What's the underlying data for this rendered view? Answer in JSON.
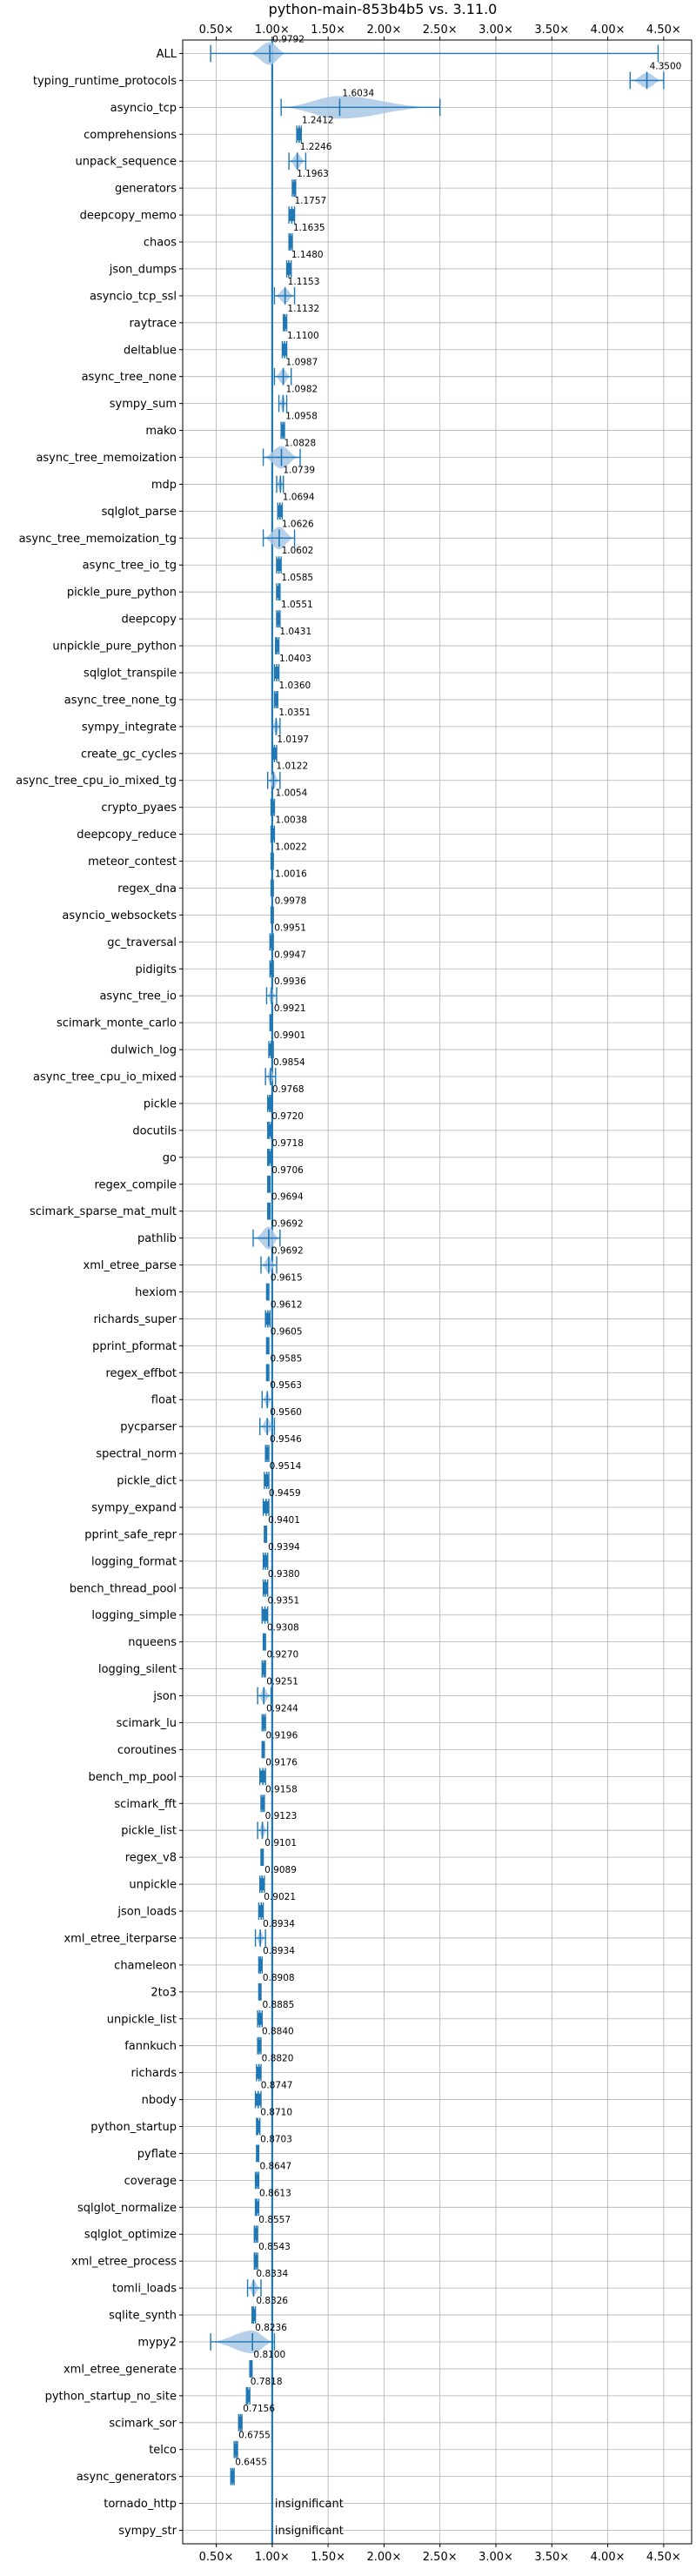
{
  "chart_data": {
    "type": "violin",
    "title": "python-main-853b4b5 vs. 3.11.0",
    "xlabel": "",
    "ylabel": "",
    "xlim": [
      0.2,
      4.75
    ],
    "x_ticks": [
      0.5,
      1.0,
      1.5,
      2.0,
      2.5,
      3.0,
      3.5,
      4.0,
      4.5
    ],
    "x_tick_labels": [
      "0.50×",
      "1.00×",
      "1.50×",
      "2.00×",
      "2.50×",
      "3.00×",
      "3.50×",
      "4.00×",
      "4.50×"
    ],
    "reference_line": 1.0,
    "grid": true,
    "color": "#1f77b4",
    "fill_color": "#a9c8e6",
    "insignificant_label": "insignificant",
    "benchmarks": [
      {
        "name": "ALL",
        "value": 0.9792,
        "label": "0.9792",
        "min": 0.45,
        "max": 4.45,
        "violin": [
          0.8,
          1.12
        ],
        "wide": true
      },
      {
        "name": "typing_runtime_protocols",
        "value": 4.35,
        "label": "4.3500",
        "min": 4.2,
        "max": 4.5,
        "violin": [
          4.22,
          4.48
        ]
      },
      {
        "name": "asyncio_tcp",
        "value": 1.6034,
        "label": "1.6034",
        "min": 1.08,
        "max": 2.5,
        "violin": [
          1.1,
          2.4
        ],
        "wide": true
      },
      {
        "name": "comprehensions",
        "value": 1.2412,
        "label": "1.2412",
        "min": 1.22,
        "max": 1.26
      },
      {
        "name": "unpack_sequence",
        "value": 1.2246,
        "label": "1.2246",
        "min": 1.15,
        "max": 1.3,
        "violin": [
          1.16,
          1.29
        ]
      },
      {
        "name": "generators",
        "value": 1.1963,
        "label": "1.1963",
        "min": 1.18,
        "max": 1.21
      },
      {
        "name": "deepcopy_memo",
        "value": 1.1757,
        "label": "1.1757",
        "min": 1.15,
        "max": 1.2
      },
      {
        "name": "chaos",
        "value": 1.1635,
        "label": "1.1635",
        "min": 1.15,
        "max": 1.18
      },
      {
        "name": "json_dumps",
        "value": 1.148,
        "label": "1.1480",
        "min": 1.13,
        "max": 1.17
      },
      {
        "name": "asyncio_tcp_ssl",
        "value": 1.1153,
        "label": "1.1153",
        "min": 1.02,
        "max": 1.2,
        "violin": [
          1.03,
          1.19
        ]
      },
      {
        "name": "raytrace",
        "value": 1.1132,
        "label": "1.1132",
        "min": 1.1,
        "max": 1.13
      },
      {
        "name": "deltablue",
        "value": 1.11,
        "label": "1.1100",
        "min": 1.09,
        "max": 1.13
      },
      {
        "name": "async_tree_none",
        "value": 1.0987,
        "label": "1.0987",
        "min": 1.02,
        "max": 1.17,
        "violin": [
          1.03,
          1.16
        ]
      },
      {
        "name": "sympy_sum",
        "value": 1.0982,
        "label": "1.0982",
        "min": 1.06,
        "max": 1.13,
        "violin": [
          1.06,
          1.12
        ]
      },
      {
        "name": "mako",
        "value": 1.0958,
        "label": "1.0958",
        "min": 1.08,
        "max": 1.11
      },
      {
        "name": "async_tree_memoization",
        "value": 1.0828,
        "label": "1.0828",
        "min": 0.92,
        "max": 1.25,
        "violin": [
          0.93,
          1.23
        ],
        "wide": true
      },
      {
        "name": "mdp",
        "value": 1.0739,
        "label": "1.0739",
        "min": 1.04,
        "max": 1.1,
        "violin": [
          1.04,
          1.1
        ]
      },
      {
        "name": "sqlglot_parse",
        "value": 1.0694,
        "label": "1.0694",
        "min": 1.05,
        "max": 1.09
      },
      {
        "name": "async_tree_memoization_tg",
        "value": 1.0626,
        "label": "1.0626",
        "min": 0.92,
        "max": 1.2,
        "violin": [
          0.93,
          1.19
        ],
        "wide": true
      },
      {
        "name": "async_tree_io_tg",
        "value": 1.0602,
        "label": "1.0602",
        "min": 1.04,
        "max": 1.08
      },
      {
        "name": "pickle_pure_python",
        "value": 1.0585,
        "label": "1.0585",
        "min": 1.04,
        "max": 1.07
      },
      {
        "name": "deepcopy",
        "value": 1.0551,
        "label": "1.0551",
        "min": 1.04,
        "max": 1.07
      },
      {
        "name": "unpickle_pure_python",
        "value": 1.0431,
        "label": "1.0431",
        "min": 1.03,
        "max": 1.06
      },
      {
        "name": "sqlglot_transpile",
        "value": 1.0403,
        "label": "1.0403",
        "min": 1.02,
        "max": 1.06
      },
      {
        "name": "async_tree_none_tg",
        "value": 1.036,
        "label": "1.0360",
        "min": 1.02,
        "max": 1.05
      },
      {
        "name": "sympy_integrate",
        "value": 1.0351,
        "label": "1.0351",
        "min": 1.0,
        "max": 1.07,
        "violin": [
          1.0,
          1.07
        ]
      },
      {
        "name": "create_gc_cycles",
        "value": 1.0197,
        "label": "1.0197",
        "min": 1.0,
        "max": 1.04
      },
      {
        "name": "async_tree_cpu_io_mixed_tg",
        "value": 1.0122,
        "label": "1.0122",
        "min": 0.96,
        "max": 1.07,
        "violin": [
          0.97,
          1.06
        ]
      },
      {
        "name": "crypto_pyaes",
        "value": 1.0054,
        "label": "1.0054",
        "min": 0.99,
        "max": 1.02
      },
      {
        "name": "deepcopy_reduce",
        "value": 1.0038,
        "label": "1.0038",
        "min": 0.99,
        "max": 1.02
      },
      {
        "name": "meteor_contest",
        "value": 1.0022,
        "label": "1.0022",
        "min": 0.99,
        "max": 1.01
      },
      {
        "name": "regex_dna",
        "value": 1.0016,
        "label": "1.0016",
        "min": 0.99,
        "max": 1.01
      },
      {
        "name": "asyncio_websockets",
        "value": 0.9978,
        "label": "0.9978",
        "min": 0.99,
        "max": 1.01
      },
      {
        "name": "gc_traversal",
        "value": 0.9951,
        "label": "0.9951",
        "min": 0.98,
        "max": 1.01
      },
      {
        "name": "pidigits",
        "value": 0.9947,
        "label": "0.9947",
        "min": 0.98,
        "max": 1.01
      },
      {
        "name": "async_tree_io",
        "value": 0.9936,
        "label": "0.9936",
        "min": 0.95,
        "max": 1.04,
        "violin": [
          0.96,
          1.03
        ]
      },
      {
        "name": "scimark_monte_carlo",
        "value": 0.9921,
        "label": "0.9921",
        "min": 0.98,
        "max": 1.0
      },
      {
        "name": "dulwich_log",
        "value": 0.9901,
        "label": "0.9901",
        "min": 0.97,
        "max": 1.01
      },
      {
        "name": "async_tree_cpu_io_mixed",
        "value": 0.9854,
        "label": "0.9854",
        "min": 0.94,
        "max": 1.03,
        "violin": [
          0.95,
          1.02
        ]
      },
      {
        "name": "pickle",
        "value": 0.9768,
        "label": "0.9768",
        "min": 0.96,
        "max": 0.99
      },
      {
        "name": "docutils",
        "value": 0.972,
        "label": "0.9720",
        "min": 0.96,
        "max": 0.99
      },
      {
        "name": "go",
        "value": 0.9718,
        "label": "0.9718",
        "min": 0.96,
        "max": 0.99
      },
      {
        "name": "regex_compile",
        "value": 0.9706,
        "label": "0.9706",
        "min": 0.96,
        "max": 0.98
      },
      {
        "name": "scimark_sparse_mat_mult",
        "value": 0.9694,
        "label": "0.9694",
        "min": 0.96,
        "max": 0.98
      },
      {
        "name": "pathlib",
        "value": 0.9692,
        "label": "0.9692",
        "min": 0.83,
        "max": 1.07,
        "violin": [
          0.85,
          1.06
        ],
        "wide": true
      },
      {
        "name": "xml_etree_parse",
        "value": 0.9692,
        "label": "0.9692",
        "min": 0.9,
        "max": 1.04,
        "violin": [
          0.91,
          1.03
        ]
      },
      {
        "name": "hexiom",
        "value": 0.9615,
        "label": "0.9615",
        "min": 0.95,
        "max": 0.97
      },
      {
        "name": "richards_super",
        "value": 0.9612,
        "label": "0.9612",
        "min": 0.94,
        "max": 0.98
      },
      {
        "name": "pprint_pformat",
        "value": 0.9605,
        "label": "0.9605",
        "min": 0.95,
        "max": 0.97
      },
      {
        "name": "regex_effbot",
        "value": 0.9585,
        "label": "0.9585",
        "min": 0.95,
        "max": 0.97
      },
      {
        "name": "float",
        "value": 0.9563,
        "label": "0.9563",
        "min": 0.91,
        "max": 1.0,
        "violin": [
          0.92,
          0.99
        ]
      },
      {
        "name": "pycparser",
        "value": 0.956,
        "label": "0.9560",
        "min": 0.89,
        "max": 1.02,
        "violin": [
          0.9,
          1.01
        ]
      },
      {
        "name": "spectral_norm",
        "value": 0.9546,
        "label": "0.9546",
        "min": 0.94,
        "max": 0.97
      },
      {
        "name": "pickle_dict",
        "value": 0.9514,
        "label": "0.9514",
        "min": 0.93,
        "max": 0.97
      },
      {
        "name": "sympy_expand",
        "value": 0.9459,
        "label": "0.9459",
        "min": 0.92,
        "max": 0.97
      },
      {
        "name": "pprint_safe_repr",
        "value": 0.9401,
        "label": "0.9401",
        "min": 0.93,
        "max": 0.95
      },
      {
        "name": "logging_format",
        "value": 0.9394,
        "label": "0.9394",
        "min": 0.92,
        "max": 0.96
      },
      {
        "name": "bench_thread_pool",
        "value": 0.938,
        "label": "0.9380",
        "min": 0.92,
        "max": 0.96
      },
      {
        "name": "logging_simple",
        "value": 0.9351,
        "label": "0.9351",
        "min": 0.91,
        "max": 0.96
      },
      {
        "name": "nqueens",
        "value": 0.9308,
        "label": "0.9308",
        "min": 0.92,
        "max": 0.94
      },
      {
        "name": "logging_silent",
        "value": 0.927,
        "label": "0.9270",
        "min": 0.91,
        "max": 0.94
      },
      {
        "name": "json",
        "value": 0.9251,
        "label": "0.9251",
        "min": 0.87,
        "max": 0.99,
        "violin": [
          0.88,
          0.98
        ]
      },
      {
        "name": "scimark_lu",
        "value": 0.9244,
        "label": "0.9244",
        "min": 0.91,
        "max": 0.94
      },
      {
        "name": "coroutines",
        "value": 0.9196,
        "label": "0.9196",
        "min": 0.91,
        "max": 0.93
      },
      {
        "name": "bench_mp_pool",
        "value": 0.9176,
        "label": "0.9176",
        "min": 0.89,
        "max": 0.94
      },
      {
        "name": "scimark_fft",
        "value": 0.9158,
        "label": "0.9158",
        "min": 0.9,
        "max": 0.93
      },
      {
        "name": "pickle_list",
        "value": 0.9123,
        "label": "0.9123",
        "min": 0.87,
        "max": 0.96,
        "violin": [
          0.88,
          0.95
        ]
      },
      {
        "name": "regex_v8",
        "value": 0.9101,
        "label": "0.9101",
        "min": 0.9,
        "max": 0.92
      },
      {
        "name": "unpickle",
        "value": 0.9089,
        "label": "0.9089",
        "min": 0.89,
        "max": 0.93
      },
      {
        "name": "json_loads",
        "value": 0.9021,
        "label": "0.9021",
        "min": 0.88,
        "max": 0.92
      },
      {
        "name": "xml_etree_iterparse",
        "value": 0.8934,
        "label": "0.8934",
        "min": 0.85,
        "max": 0.94,
        "violin": [
          0.86,
          0.93
        ]
      },
      {
        "name": "chameleon",
        "value": 0.8934,
        "label": "0.8934",
        "min": 0.88,
        "max": 0.91
      },
      {
        "name": "2to3",
        "value": 0.8908,
        "label": "0.8908",
        "min": 0.88,
        "max": 0.9
      },
      {
        "name": "unpickle_list",
        "value": 0.8885,
        "label": "0.8885",
        "min": 0.87,
        "max": 0.91
      },
      {
        "name": "fannkuch",
        "value": 0.884,
        "label": "0.8840",
        "min": 0.87,
        "max": 0.9
      },
      {
        "name": "richards",
        "value": 0.882,
        "label": "0.8820",
        "min": 0.86,
        "max": 0.9
      },
      {
        "name": "nbody",
        "value": 0.8747,
        "label": "0.8747",
        "min": 0.85,
        "max": 0.9
      },
      {
        "name": "python_startup",
        "value": 0.871,
        "label": "0.8710",
        "min": 0.86,
        "max": 0.89
      },
      {
        "name": "pyflate",
        "value": 0.8703,
        "label": "0.8703",
        "min": 0.86,
        "max": 0.88
      },
      {
        "name": "coverage",
        "value": 0.8647,
        "label": "0.8647",
        "min": 0.85,
        "max": 0.88
      },
      {
        "name": "sqlglot_normalize",
        "value": 0.8613,
        "label": "0.8613",
        "min": 0.85,
        "max": 0.88
      },
      {
        "name": "sqlglot_optimize",
        "value": 0.8557,
        "label": "0.8557",
        "min": 0.84,
        "max": 0.87
      },
      {
        "name": "xml_etree_process",
        "value": 0.8543,
        "label": "0.8543",
        "min": 0.84,
        "max": 0.87
      },
      {
        "name": "tomli_loads",
        "value": 0.8334,
        "label": "0.8334",
        "min": 0.78,
        "max": 0.9,
        "violin": [
          0.79,
          0.89
        ]
      },
      {
        "name": "sqlite_synth",
        "value": 0.8326,
        "label": "0.8326",
        "min": 0.82,
        "max": 0.85
      },
      {
        "name": "mypy2",
        "value": 0.8236,
        "label": "0.8236",
        "min": 0.45,
        "max": 1.02,
        "violin": [
          0.46,
          1.01
        ],
        "wide": true
      },
      {
        "name": "xml_etree_generate",
        "value": 0.81,
        "label": "0.8100",
        "min": 0.8,
        "max": 0.82
      },
      {
        "name": "python_startup_no_site",
        "value": 0.7818,
        "label": "0.7818",
        "min": 0.77,
        "max": 0.8
      },
      {
        "name": "scimark_sor",
        "value": 0.7156,
        "label": "0.7156",
        "min": 0.7,
        "max": 0.73
      },
      {
        "name": "telco",
        "value": 0.6755,
        "label": "0.6755",
        "min": 0.66,
        "max": 0.69
      },
      {
        "name": "async_generators",
        "value": 0.6455,
        "label": "0.6455",
        "min": 0.63,
        "max": 0.66
      },
      {
        "name": "tornado_http",
        "insignificant": true
      },
      {
        "name": "sympy_str",
        "insignificant": true
      }
    ]
  }
}
